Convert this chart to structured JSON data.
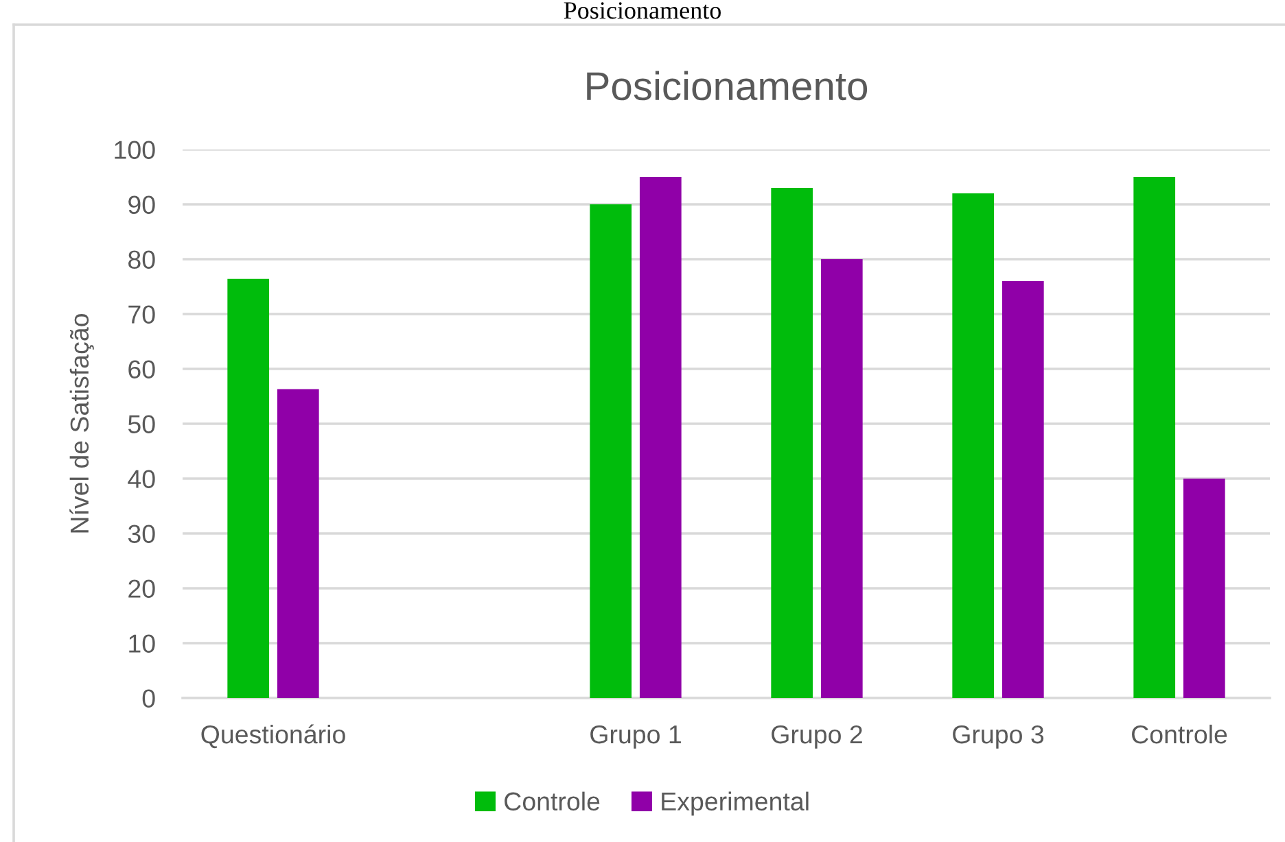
{
  "chart_data": {
    "type": "bar",
    "title": "Posicionamento",
    "ylabel": "Nível de Satisfação",
    "annotations": [
      "Posicionamento"
    ],
    "categories": [
      "Questionário",
      null,
      "Grupo 1",
      "Grupo 2",
      "Grupo 3",
      "Controle"
    ],
    "series": [
      {
        "name": "Controle",
        "color": "#00bc0c",
        "values": [
          76.4,
          null,
          90,
          93,
          92,
          95
        ]
      },
      {
        "name": "Experimental",
        "color": "#9000a8",
        "values": [
          56.3,
          null,
          95,
          80,
          76,
          40
        ]
      }
    ],
    "ylim": [
      0,
      100
    ],
    "yticks": [
      0,
      10,
      20,
      30,
      40,
      50,
      60,
      70,
      80,
      90,
      100
    ],
    "grid": "y",
    "legend": "bottom"
  }
}
